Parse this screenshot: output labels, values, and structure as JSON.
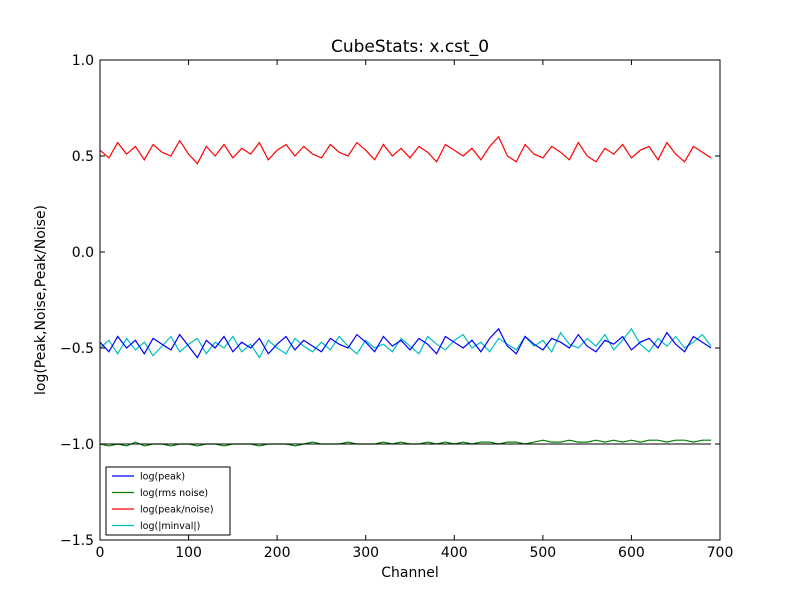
{
  "chart_data": {
    "type": "line",
    "title": "CubeStats: x.cst_0",
    "xlabel": "Channel",
    "ylabel": "log(Peak,Noise,Peak/Noise)",
    "xlim": [
      0,
      700
    ],
    "ylim": [
      -1.5,
      1.0
    ],
    "x_ticks": [
      0,
      100,
      200,
      300,
      400,
      500,
      600,
      700
    ],
    "y_ticks": [
      -1.5,
      -1.0,
      -0.5,
      0.0,
      0.5,
      1.0
    ],
    "x_tick_labels": [
      "0",
      "100",
      "200",
      "300",
      "400",
      "500",
      "600",
      "700"
    ],
    "y_tick_labels": [
      "−1.5",
      "−1.0",
      "−0.5",
      "0.0",
      "0.5",
      "1.0"
    ],
    "grid": false,
    "legend_position": "bottom-left",
    "x": [
      0,
      10,
      20,
      30,
      40,
      50,
      60,
      70,
      80,
      90,
      100,
      110,
      120,
      130,
      140,
      150,
      160,
      170,
      180,
      190,
      200,
      210,
      220,
      230,
      240,
      250,
      260,
      270,
      280,
      290,
      300,
      310,
      320,
      330,
      340,
      350,
      360,
      370,
      380,
      390,
      400,
      410,
      420,
      430,
      440,
      450,
      460,
      470,
      480,
      490,
      500,
      510,
      520,
      530,
      540,
      550,
      560,
      570,
      580,
      590,
      600,
      610,
      620,
      630,
      640,
      650,
      660,
      670,
      680,
      690
    ],
    "series": [
      {
        "name": "log(peak)",
        "color": "#0000ff",
        "values": [
          -0.47,
          -0.52,
          -0.44,
          -0.5,
          -0.46,
          -0.53,
          -0.45,
          -0.48,
          -0.51,
          -0.43,
          -0.49,
          -0.55,
          -0.46,
          -0.5,
          -0.44,
          -0.52,
          -0.47,
          -0.5,
          -0.45,
          -0.53,
          -0.48,
          -0.44,
          -0.51,
          -0.46,
          -0.49,
          -0.52,
          -0.45,
          -0.48,
          -0.5,
          -0.43,
          -0.47,
          -0.52,
          -0.44,
          -0.49,
          -0.46,
          -0.51,
          -0.45,
          -0.48,
          -0.53,
          -0.44,
          -0.47,
          -0.5,
          -0.46,
          -0.52,
          -0.45,
          -0.4,
          -0.49,
          -0.53,
          -0.44,
          -0.48,
          -0.51,
          -0.45,
          -0.47,
          -0.5,
          -0.43,
          -0.49,
          -0.52,
          -0.46,
          -0.48,
          -0.44,
          -0.51,
          -0.47,
          -0.45,
          -0.5,
          -0.42,
          -0.48,
          -0.52,
          -0.44,
          -0.47,
          -0.5
        ]
      },
      {
        "name": "log(rms noise)",
        "color": "#008000",
        "values": [
          -1.0,
          -1.01,
          -1.0,
          -1.01,
          -0.99,
          -1.01,
          -1.0,
          -1.0,
          -1.01,
          -1.0,
          -1.0,
          -1.01,
          -1.0,
          -1.0,
          -1.01,
          -1.0,
          -1.0,
          -1.0,
          -1.01,
          -1.0,
          -1.0,
          -1.0,
          -1.01,
          -1.0,
          -0.99,
          -1.0,
          -1.0,
          -1.0,
          -0.99,
          -1.0,
          -1.0,
          -1.0,
          -0.99,
          -1.0,
          -0.99,
          -1.0,
          -1.0,
          -0.99,
          -1.0,
          -0.99,
          -1.0,
          -0.99,
          -1.0,
          -0.99,
          -0.99,
          -1.0,
          -0.99,
          -0.99,
          -1.0,
          -0.99,
          -0.98,
          -0.99,
          -0.99,
          -0.98,
          -0.99,
          -0.99,
          -0.98,
          -0.99,
          -0.98,
          -0.99,
          -0.98,
          -0.99,
          -0.98,
          -0.98,
          -0.99,
          -0.98,
          -0.98,
          -0.99,
          -0.98,
          -0.98
        ]
      },
      {
        "name": "log(peak/noise)",
        "color": "#ff0000",
        "values": [
          0.53,
          0.49,
          0.57,
          0.51,
          0.55,
          0.48,
          0.56,
          0.52,
          0.5,
          0.58,
          0.51,
          0.46,
          0.55,
          0.5,
          0.56,
          0.49,
          0.54,
          0.51,
          0.57,
          0.48,
          0.53,
          0.56,
          0.5,
          0.55,
          0.51,
          0.49,
          0.56,
          0.52,
          0.5,
          0.57,
          0.53,
          0.48,
          0.56,
          0.5,
          0.54,
          0.49,
          0.55,
          0.52,
          0.47,
          0.56,
          0.53,
          0.5,
          0.54,
          0.48,
          0.55,
          0.6,
          0.5,
          0.47,
          0.56,
          0.51,
          0.49,
          0.55,
          0.52,
          0.48,
          0.57,
          0.5,
          0.47,
          0.54,
          0.51,
          0.56,
          0.49,
          0.53,
          0.55,
          0.48,
          0.57,
          0.51,
          0.47,
          0.55,
          0.52,
          0.49
        ]
      },
      {
        "name": "log(|minval|)",
        "color": "#00bfbf",
        "values": [
          -0.5,
          -0.46,
          -0.53,
          -0.45,
          -0.51,
          -0.47,
          -0.54,
          -0.49,
          -0.44,
          -0.52,
          -0.48,
          -0.45,
          -0.53,
          -0.47,
          -0.5,
          -0.44,
          -0.52,
          -0.48,
          -0.55,
          -0.46,
          -0.5,
          -0.53,
          -0.45,
          -0.49,
          -0.52,
          -0.47,
          -0.51,
          -0.44,
          -0.49,
          -0.53,
          -0.46,
          -0.5,
          -0.48,
          -0.52,
          -0.45,
          -0.49,
          -0.53,
          -0.44,
          -0.48,
          -0.51,
          -0.46,
          -0.43,
          -0.5,
          -0.47,
          -0.52,
          -0.45,
          -0.48,
          -0.51,
          -0.44,
          -0.49,
          -0.46,
          -0.52,
          -0.42,
          -0.48,
          -0.5,
          -0.45,
          -0.49,
          -0.43,
          -0.51,
          -0.46,
          -0.4,
          -0.48,
          -0.52,
          -0.45,
          -0.49,
          -0.44,
          -0.5,
          -0.47,
          -0.43,
          -0.49
        ]
      }
    ],
    "reference_line": {
      "value": -1.0,
      "color": "#000000"
    }
  }
}
